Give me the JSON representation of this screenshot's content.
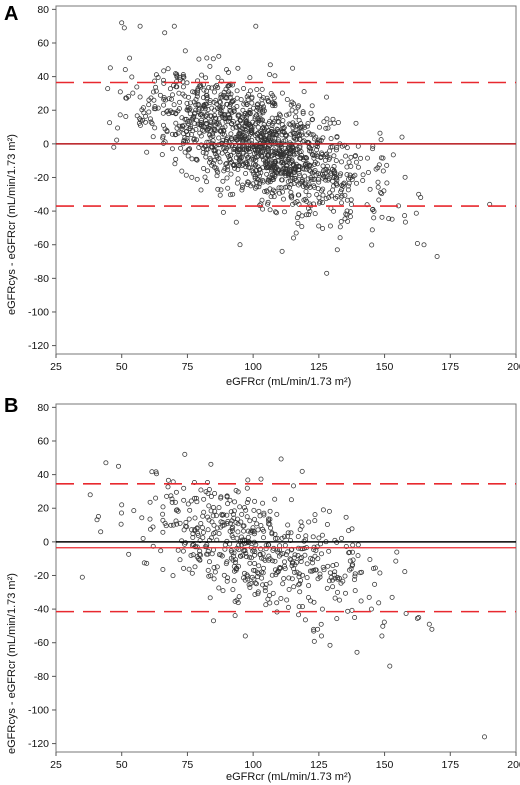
{
  "chart_data": [
    {
      "panel": "A",
      "type": "scatter",
      "title": "",
      "xlabel": "eGFRcr (mL/min/1.73 m²)",
      "ylabel": "eGFRcys - eGFRcr (mL/min/1.73 m²)",
      "xlim": [
        25,
        200
      ],
      "ylim": [
        -125,
        82
      ],
      "x_ticks": [
        25,
        50,
        75,
        100,
        125,
        150,
        175,
        200
      ],
      "y_ticks": [
        80,
        60,
        40,
        20,
        0,
        -20,
        -40,
        -60,
        -80,
        -100,
        -120
      ],
      "grid": false,
      "zero_line": 0,
      "mean_line": 0,
      "upper_limit": 36.5,
      "lower_limit": -37,
      "colors": {
        "points": "#333333",
        "zero": "#000000",
        "limits": "#e8292f",
        "mean": "#e8292f"
      },
      "point_cloud": {
        "n": 1400,
        "x_center": 102,
        "x_sd": 20,
        "slope": -0.55,
        "y_sd": 16,
        "seed": 11
      },
      "points": [
        [
          50,
          72
        ],
        [
          51,
          69
        ],
        [
          57,
          70
        ],
        [
          101,
          70
        ],
        [
          53,
          51
        ],
        [
          115,
          45
        ],
        [
          163,
          -30
        ],
        [
          170,
          -67
        ],
        [
          190,
          -36
        ],
        [
          128,
          -77
        ],
        [
          111,
          -64
        ],
        [
          95,
          -60
        ],
        [
          132,
          -63
        ],
        [
          47,
          -2
        ]
      ]
    },
    {
      "panel": "B",
      "type": "scatter",
      "title": "",
      "xlabel": "eGFRcr (mL/min/1.73 m²)",
      "ylabel": "eGFRcys - eGFRcr (mL/min/1.73 m²)",
      "xlim": [
        25,
        200
      ],
      "ylim": [
        -125,
        82
      ],
      "x_ticks": [
        25,
        50,
        75,
        100,
        125,
        150,
        175,
        200
      ],
      "y_ticks": [
        80,
        60,
        40,
        20,
        0,
        -20,
        -40,
        -60,
        -80,
        -100,
        -120
      ],
      "grid": false,
      "zero_line": 0,
      "mean_line": -3.5,
      "upper_limit": 34.5,
      "lower_limit": -41.5,
      "colors": {
        "points": "#333333",
        "zero": "#000000",
        "limits": "#e8292f",
        "mean": "#e8292f"
      },
      "point_cloud": {
        "n": 560,
        "x_center": 100,
        "x_sd": 22,
        "slope": -0.5,
        "y_sd": 17,
        "seed": 29
      },
      "points": [
        [
          35,
          -21
        ],
        [
          38,
          28
        ],
        [
          44,
          47
        ],
        [
          74,
          52
        ],
        [
          188,
          -116
        ],
        [
          168,
          -52
        ],
        [
          167,
          -49
        ],
        [
          163,
          -45
        ],
        [
          97,
          -56
        ],
        [
          126,
          -56
        ],
        [
          149,
          -56
        ],
        [
          145,
          -40
        ],
        [
          50,
          22
        ],
        [
          42,
          6
        ]
      ]
    }
  ],
  "panels": {
    "a": {
      "letter": "A",
      "ylabel": "eGFRcys - eGFRcr (mL/min/1.73 m²)",
      "xlabel": "eGFRcr (mL/min/1.73 m²)"
    },
    "b": {
      "letter": "B",
      "ylabel": "eGFRcys - eGFRcr (mL/min/1.73 m²)",
      "xlabel": "eGFRcr (mL/min/1.73 m²)"
    }
  }
}
